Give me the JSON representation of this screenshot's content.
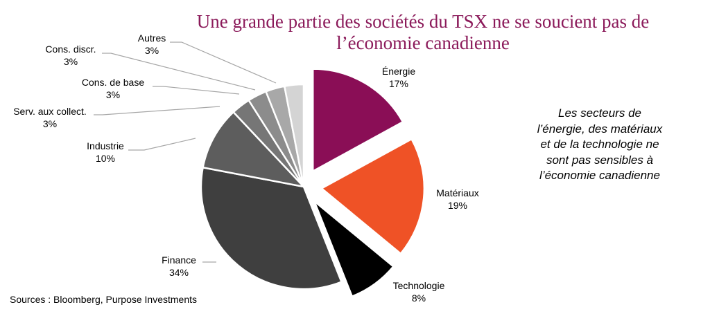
{
  "title": {
    "line1": "Une grande partie des sociétés du TSX ne se soucient pas de",
    "line2": "l’économie canadienne"
  },
  "side_note": "Les secteurs de l’énergie, des matériaux et de la technologie ne sont pas sensibles à l’économie canadienne",
  "source": "Sources : Bloomberg, Purpose Investments",
  "chart_data": {
    "type": "pie",
    "slices": [
      {
        "label": "Énergie",
        "value": 17,
        "pct": "17%",
        "color": "#8a0e56",
        "exploded": true
      },
      {
        "label": "Matériaux",
        "value": 19,
        "pct": "19%",
        "color": "#ef5226",
        "exploded": true
      },
      {
        "label": "Technologie",
        "value": 8,
        "pct": "8%",
        "color": "#000000",
        "exploded": true
      },
      {
        "label": "Finance",
        "value": 34,
        "pct": "34%",
        "color": "#3f3f3f",
        "exploded": false
      },
      {
        "label": "Industrie",
        "value": 10,
        "pct": "10%",
        "color": "#5d5d5d",
        "exploded": false
      },
      {
        "label": "Serv. aux collect.",
        "value": 3,
        "pct": "3%",
        "color": "#767676",
        "exploded": false
      },
      {
        "label": "Cons. de base",
        "value": 3,
        "pct": "3%",
        "color": "#8c8c8c",
        "exploded": false
      },
      {
        "label": "Cons. discr.",
        "value": 3,
        "pct": "3%",
        "color": "#a8a8a8",
        "exploded": false
      },
      {
        "label": "Autres",
        "value": 3,
        "pct": "3%",
        "color": "#d4d4d4",
        "exploded": false
      }
    ]
  }
}
